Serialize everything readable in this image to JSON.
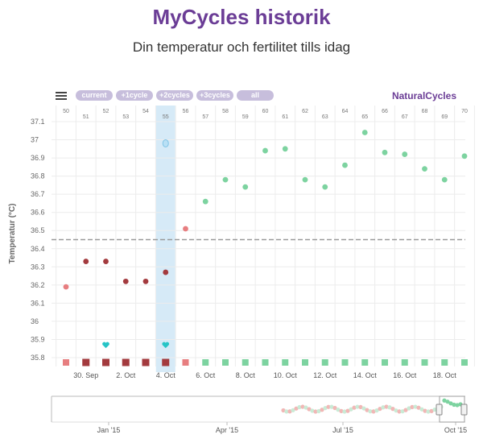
{
  "page": {
    "title": "MyCycles historik",
    "subtitle": "Din temperatur och fertilitet tills idag",
    "brand": "NaturalCycles"
  },
  "range_buttons": [
    "current",
    "+1cycle",
    "+2cycles",
    "+3cycles",
    "all"
  ],
  "colors": {
    "title": "#6b3d96",
    "high_temp": "#7dd3a0",
    "low_temp_period": "#a33a3e",
    "low_temp": "#e77e80",
    "test_marker": "#26c4c6",
    "selected_band": "#d6eaf7",
    "threshold_line": "#999999"
  },
  "chart_data": {
    "type": "scatter",
    "title": "",
    "xlabel": "",
    "ylabel": "Temperatur (°C)",
    "ylim": [
      35.8,
      37.1
    ],
    "yticks": [
      "37.1",
      "37",
      "36.9",
      "36.8",
      "36.7",
      "36.6",
      "36.5",
      "36.4",
      "36.3",
      "36.2",
      "36.1",
      "36",
      "35.9",
      "35.8"
    ],
    "cycle_days": [
      "50",
      "51",
      "52",
      "53",
      "54",
      "55",
      "56",
      "57",
      "58",
      "59",
      "60",
      "61",
      "62",
      "63",
      "64",
      "65",
      "66",
      "67",
      "68",
      "69",
      "70"
    ],
    "date_ticks": [
      {
        "label": "30. Sep",
        "day_index": 1
      },
      {
        "label": "2. Oct",
        "day_index": 3
      },
      {
        "label": "4. Oct",
        "day_index": 5
      },
      {
        "label": "6. Oct",
        "day_index": 7
      },
      {
        "label": "8. Oct",
        "day_index": 9
      },
      {
        "label": "10. Oct",
        "day_index": 11
      },
      {
        "label": "12. Oct",
        "day_index": 13
      },
      {
        "label": "14. Oct",
        "day_index": 15
      },
      {
        "label": "16. Oct",
        "day_index": 17
      },
      {
        "label": "18. Oct",
        "day_index": 19
      }
    ],
    "temperatures": [
      {
        "day": 50,
        "temp": 36.19,
        "status": "low"
      },
      {
        "day": 51,
        "temp": 36.33,
        "status": "period"
      },
      {
        "day": 52,
        "temp": 36.33,
        "status": "period"
      },
      {
        "day": 53,
        "temp": 36.22,
        "status": "period"
      },
      {
        "day": 54,
        "temp": 36.22,
        "status": "period"
      },
      {
        "day": 55,
        "temp": 36.27,
        "status": "period"
      },
      {
        "day": 56,
        "temp": 36.51,
        "status": "low"
      },
      {
        "day": 57,
        "temp": 36.66,
        "status": "high"
      },
      {
        "day": 58,
        "temp": 36.78,
        "status": "high"
      },
      {
        "day": 59,
        "temp": 36.74,
        "status": "high"
      },
      {
        "day": 60,
        "temp": 36.94,
        "status": "high"
      },
      {
        "day": 61,
        "temp": 36.95,
        "status": "high"
      },
      {
        "day": 62,
        "temp": 36.78,
        "status": "high"
      },
      {
        "day": 63,
        "temp": 36.74,
        "status": "high"
      },
      {
        "day": 64,
        "temp": 36.86,
        "status": "high"
      },
      {
        "day": 65,
        "temp": 37.04,
        "status": "high"
      },
      {
        "day": 66,
        "temp": 36.93,
        "status": "high"
      },
      {
        "day": 67,
        "temp": 36.92,
        "status": "high"
      },
      {
        "day": 68,
        "temp": 36.84,
        "status": "high"
      },
      {
        "day": 69,
        "temp": 36.78,
        "status": "high"
      },
      {
        "day": 70,
        "temp": 36.91,
        "status": "high"
      }
    ],
    "selected_day": 55,
    "selected_day_marker_temp": 36.98,
    "threshold": 36.45,
    "heart_markers": [
      {
        "day": 52,
        "temp": 35.87
      },
      {
        "day": 55,
        "temp": 35.87
      }
    ],
    "fertility_squares": [
      "low",
      "period",
      "period",
      "period",
      "period",
      "period",
      "low",
      "high",
      "high",
      "high",
      "high",
      "high",
      "high",
      "high",
      "high",
      "high",
      "high",
      "high",
      "high",
      "high",
      "high"
    ],
    "navigator_ticks": [
      "Jan '15",
      "Apr '15",
      "Jul '15",
      "Oct '15"
    ],
    "grid": true,
    "legend": "none"
  }
}
